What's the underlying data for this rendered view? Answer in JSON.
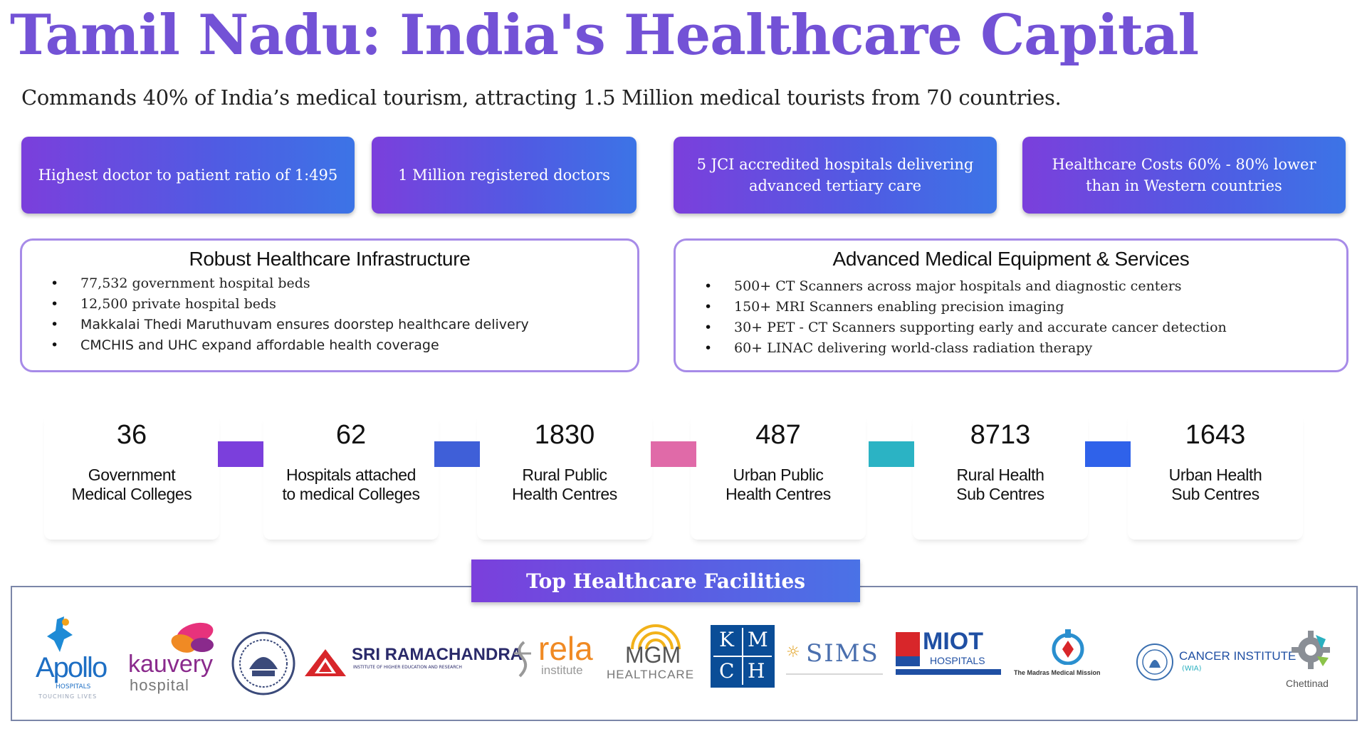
{
  "page": {
    "title": "Tamil Nadu: India's Healthcare Capital",
    "subtitle": "Commands 40% of India’s medical tourism, attracting 1.5 Million medical tourists from 70 countries."
  },
  "stat_cards": [
    {
      "text": "Highest doctor to patient ratio of 1:495"
    },
    {
      "text": "1 Million registered doctors"
    },
    {
      "text": "5 JCI accredited hospitals delivering advanced tertiary care"
    },
    {
      "text": "Healthcare Costs 60% - 80% lower than in Western countries"
    }
  ],
  "infrastructure": {
    "heading": "Robust Healthcare Infrastructure",
    "items": [
      "77,532 government hospital beds",
      "12,500 private hospital beds",
      "Makkalai Thedi Maruthuvam ensures doorstep healthcare delivery",
      "CMCHIS and UHC expand affordable health coverage"
    ]
  },
  "equipment": {
    "heading": "Advanced Medical Equipment & Services",
    "items": [
      "500+ CT Scanners across major hospitals and diagnostic centers",
      "150+ MRI Scanners enabling precision imaging",
      "30+ PET - CT Scanners supporting early and accurate cancer detection",
      "60+ LINAC delivering world-class radiation therapy"
    ]
  },
  "counts": [
    {
      "value": "36",
      "label_line1": "Government",
      "label_line2": "Medical Colleges"
    },
    {
      "value": "62",
      "label_line1": "Hospitals attached",
      "label_line2": "to medical Colleges"
    },
    {
      "value": "1830",
      "label_line1": "Rural Public",
      "label_line2": "Health Centres"
    },
    {
      "value": "487",
      "label_line1": "Urban Public",
      "label_line2": "Health Centres"
    },
    {
      "value": "8713",
      "label_line1": "Rural Health",
      "label_line2": "Sub Centres"
    },
    {
      "value": "1643",
      "label_line1": "Urban Health",
      "label_line2": "Sub Centres"
    }
  ],
  "connector_colors": [
    "#7b3fdc",
    "#3f5fd8",
    "#e06aa8",
    "#2bb3c4",
    "#2f62ea"
  ],
  "facilities": {
    "heading": "Top Healthcare Facilities",
    "logos": {
      "apollo": {
        "name": "Apollo",
        "sub": "HOSPITALS",
        "tag": "TOUCHING LIVES"
      },
      "kauvery": {
        "name": "kauvery",
        "sub": "hospital"
      },
      "sri_ramachandra": {
        "name": "SRI RAMACHANDRA",
        "sub": "INSTITUTE OF HIGHER EDUCATION AND RESEARCH"
      },
      "rela": {
        "name": "rela",
        "sub": "institute"
      },
      "mgm": {
        "name": "MGM",
        "sub": "HEALTHCARE"
      },
      "kmch": {
        "l1": "K",
        "l2": "M",
        "l3": "C",
        "l4": "H"
      },
      "sims": {
        "name": "SIMS"
      },
      "miot": {
        "name": "MIOT",
        "sub": "HOSPITALS"
      },
      "madras_medical_mission": {
        "name": "The Madras Medical Mission"
      },
      "cancer_institute": {
        "name": "CANCER INSTITUTE",
        "sub": "(WIA)"
      },
      "chettinad": {
        "name": "Chettinad"
      }
    }
  },
  "colors": {
    "title": "#7352d6",
    "card_gradient_start": "#7b3fdc",
    "card_gradient_end": "#3c74e6",
    "box_border": "#a78be8"
  }
}
